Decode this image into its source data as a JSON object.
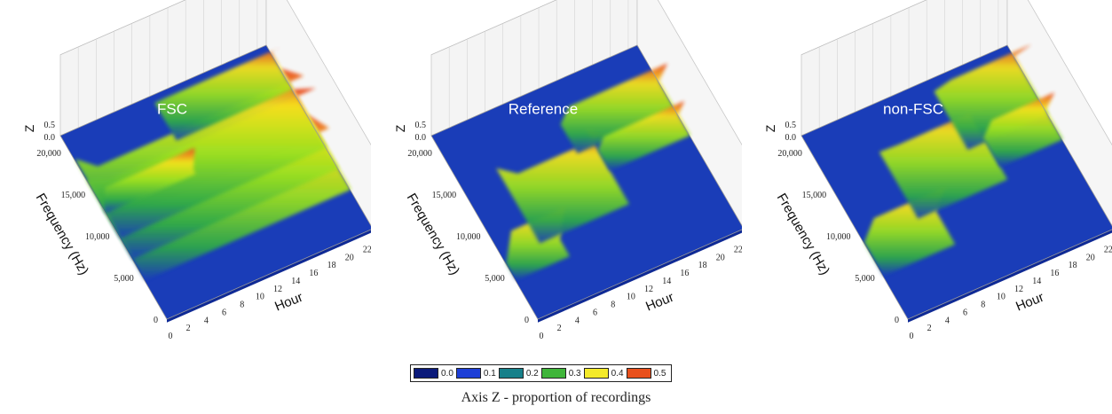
{
  "chart_data": [
    {
      "type": "surface3d",
      "title": "FSC",
      "xlabel": "Hour",
      "ylabel": "Frequency (Hz)",
      "zlabel": "Z",
      "x_ticks": [
        "0",
        "2",
        "4",
        "6",
        "8",
        "10",
        "12",
        "14",
        "16",
        "18",
        "20",
        "22"
      ],
      "y_ticks": [
        "0",
        "5,000",
        "10,000",
        "15,000",
        "20,000"
      ],
      "z_ticks": [
        "0.0",
        "0.5"
      ],
      "xlim": [
        0,
        23
      ],
      "ylim": [
        0,
        22000
      ],
      "zlim": [
        0,
        0.5
      ],
      "colors": {
        "floor": "#1a3db8",
        "low": "#2ea84a",
        "mid": "#9be020",
        "high": "#f6e21e",
        "peak": "#e8411c"
      },
      "bands": [
        {
          "x": [
            0,
            23
          ],
          "y_start": 4500,
          "y_end": 13500,
          "z": 0.3
        },
        {
          "x": [
            0,
            23
          ],
          "y_start": 7000,
          "y_end": 16500,
          "z": 0.5
        },
        {
          "x": [
            0,
            23
          ],
          "y_start": 9500,
          "y_end": 19000,
          "z": 0.4
        },
        {
          "x": [
            0,
            10
          ],
          "y_start": 12500,
          "y_end": 13000,
          "z": 0.3
        },
        {
          "x": [
            10,
            23
          ],
          "y_start": 16500,
          "y_end": 21000,
          "z": 0.3
        }
      ]
    },
    {
      "type": "surface3d",
      "title": "Reference",
      "xlabel": "Hour",
      "ylabel": "Frequency (Hz)",
      "zlabel": "Z",
      "x_ticks": [
        "0",
        "2",
        "4",
        "6",
        "8",
        "10",
        "12",
        "14",
        "16",
        "18",
        "20",
        "22"
      ],
      "y_ticks": [
        "0",
        "5,000",
        "10,000",
        "15,000",
        "20,000"
      ],
      "z_ticks": [
        "0.0",
        "0.5"
      ],
      "xlim": [
        0,
        23
      ],
      "ylim": [
        0,
        22000
      ],
      "zlim": [
        0,
        0.5
      ],
      "colors": {
        "floor": "#1a3db8",
        "low": "#2ea84a",
        "mid": "#9be020",
        "high": "#f6e21e",
        "peak": "#e8411c"
      },
      "bands": [
        {
          "x": [
            0,
            6
          ],
          "y_start": 4500,
          "y_end": 6500,
          "z": 0.5
        },
        {
          "x": [
            4,
            14
          ],
          "y_start": 7000,
          "y_end": 16000,
          "z": 0.4
        },
        {
          "x": [
            12,
            23
          ],
          "y_start": 14000,
          "y_end": 17500,
          "z": 0.4
        },
        {
          "x": [
            14,
            23
          ],
          "y_start": 11000,
          "y_end": 13500,
          "z": 0.3
        }
      ]
    },
    {
      "type": "surface3d",
      "title": "non-FSC",
      "xlabel": "Hour",
      "ylabel": "Frequency (Hz)",
      "zlabel": "Z",
      "x_ticks": [
        "0",
        "2",
        "4",
        "6",
        "8",
        "10",
        "12",
        "14",
        "16",
        "18",
        "20",
        "22"
      ],
      "y_ticks": [
        "0",
        "5,000",
        "10,000",
        "15,000",
        "20,000"
      ],
      "z_ticks": [
        "0.0",
        "0.5"
      ],
      "xlim": [
        0,
        23
      ],
      "ylim": [
        0,
        22000
      ],
      "zlim": [
        0,
        0.5
      ],
      "colors": {
        "floor": "#1a3db8",
        "low": "#2ea84a",
        "mid": "#9be020",
        "high": "#f6e21e",
        "peak": "#e8411c"
      },
      "bands": [
        {
          "x": [
            0,
            8
          ],
          "y_start": 5000,
          "y_end": 9000,
          "z": 0.5
        },
        {
          "x": [
            6,
            16
          ],
          "y_start": 9000,
          "y_end": 17000,
          "z": 0.5
        },
        {
          "x": [
            14,
            23
          ],
          "y_start": 13500,
          "y_end": 20500,
          "z": 0.5
        },
        {
          "x": [
            16,
            23
          ],
          "y_start": 10500,
          "y_end": 14000,
          "z": 0.4
        }
      ]
    }
  ],
  "legend": {
    "items": [
      {
        "label": "0.0",
        "color": "#0b1a7a"
      },
      {
        "label": "0.1",
        "color": "#1e3fd6"
      },
      {
        "label": "0.2",
        "color": "#17808a"
      },
      {
        "label": "0.3",
        "color": "#3fb53a"
      },
      {
        "label": "0.4",
        "color": "#f4ea2a"
      },
      {
        "label": "0.5",
        "color": "#e8501c"
      }
    ]
  },
  "caption": "Axis Z - proportion of recordings"
}
